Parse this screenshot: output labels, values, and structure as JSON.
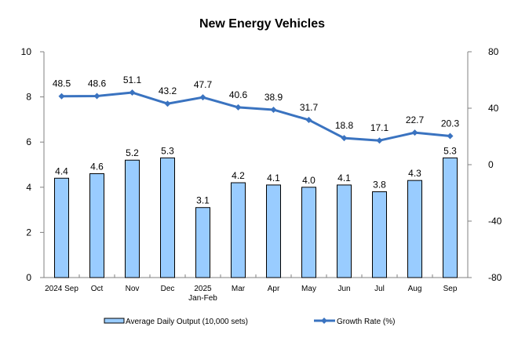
{
  "chart_data": {
    "type": "bar+line",
    "title": "New Energy Vehicles",
    "categories": [
      {
        "line1": "2024 Sep",
        "line2": ""
      },
      {
        "line1": "Oct",
        "line2": ""
      },
      {
        "line1": "Nov",
        "line2": ""
      },
      {
        "line1": "Dec",
        "line2": ""
      },
      {
        "line1": "2025",
        "line2": "Jan-Feb"
      },
      {
        "line1": "Mar",
        "line2": ""
      },
      {
        "line1": "Apr",
        "line2": ""
      },
      {
        "line1": "May",
        "line2": ""
      },
      {
        "line1": "Jun",
        "line2": ""
      },
      {
        "line1": "Jul",
        "line2": ""
      },
      {
        "line1": "Aug",
        "line2": ""
      },
      {
        "line1": "Sep",
        "line2": ""
      }
    ],
    "series": [
      {
        "name": "Average Daily Output (10,000 sets)",
        "type": "bar",
        "axis": "left",
        "color": "#99ccff",
        "values": [
          4.4,
          4.6,
          5.2,
          5.3,
          3.1,
          4.2,
          4.1,
          4.0,
          4.1,
          3.8,
          4.3,
          5.3
        ],
        "labels": [
          "4.4",
          "4.6",
          "5.2",
          "5.3",
          "3.1",
          "4.2",
          "4.1",
          "4.0",
          "4.1",
          "3.8",
          "4.3",
          "5.3"
        ]
      },
      {
        "name": "Growth Rate (%)",
        "type": "line",
        "axis": "right",
        "color": "#3a73c0",
        "values": [
          48.5,
          48.6,
          51.1,
          43.2,
          47.7,
          40.6,
          38.9,
          31.7,
          18.8,
          17.1,
          22.7,
          20.3
        ],
        "labels": [
          "48.5",
          "48.6",
          "51.1",
          "43.2",
          "47.7",
          "40.6",
          "38.9",
          "31.7",
          "18.8",
          "17.1",
          "22.7",
          "20.3"
        ]
      }
    ],
    "y_left": {
      "range": [
        0,
        10
      ],
      "ticks": [
        "0",
        "2",
        "4",
        "6",
        "8",
        "10"
      ],
      "tick_values": [
        0,
        2,
        4,
        6,
        8,
        10
      ]
    },
    "y_right": {
      "range": [
        -80,
        80
      ],
      "ticks": [
        "-80",
        "-40",
        "0",
        "40",
        "80"
      ],
      "tick_values": [
        -80,
        -40,
        0,
        40,
        80
      ]
    },
    "xlabel": "",
    "ylabel": "",
    "grid": false,
    "legend": {
      "position": "bottom",
      "items": [
        {
          "label": "Average Daily Output (10,000 sets)",
          "kind": "bar"
        },
        {
          "label": "Growth Rate (%)",
          "kind": "line"
        }
      ]
    }
  }
}
